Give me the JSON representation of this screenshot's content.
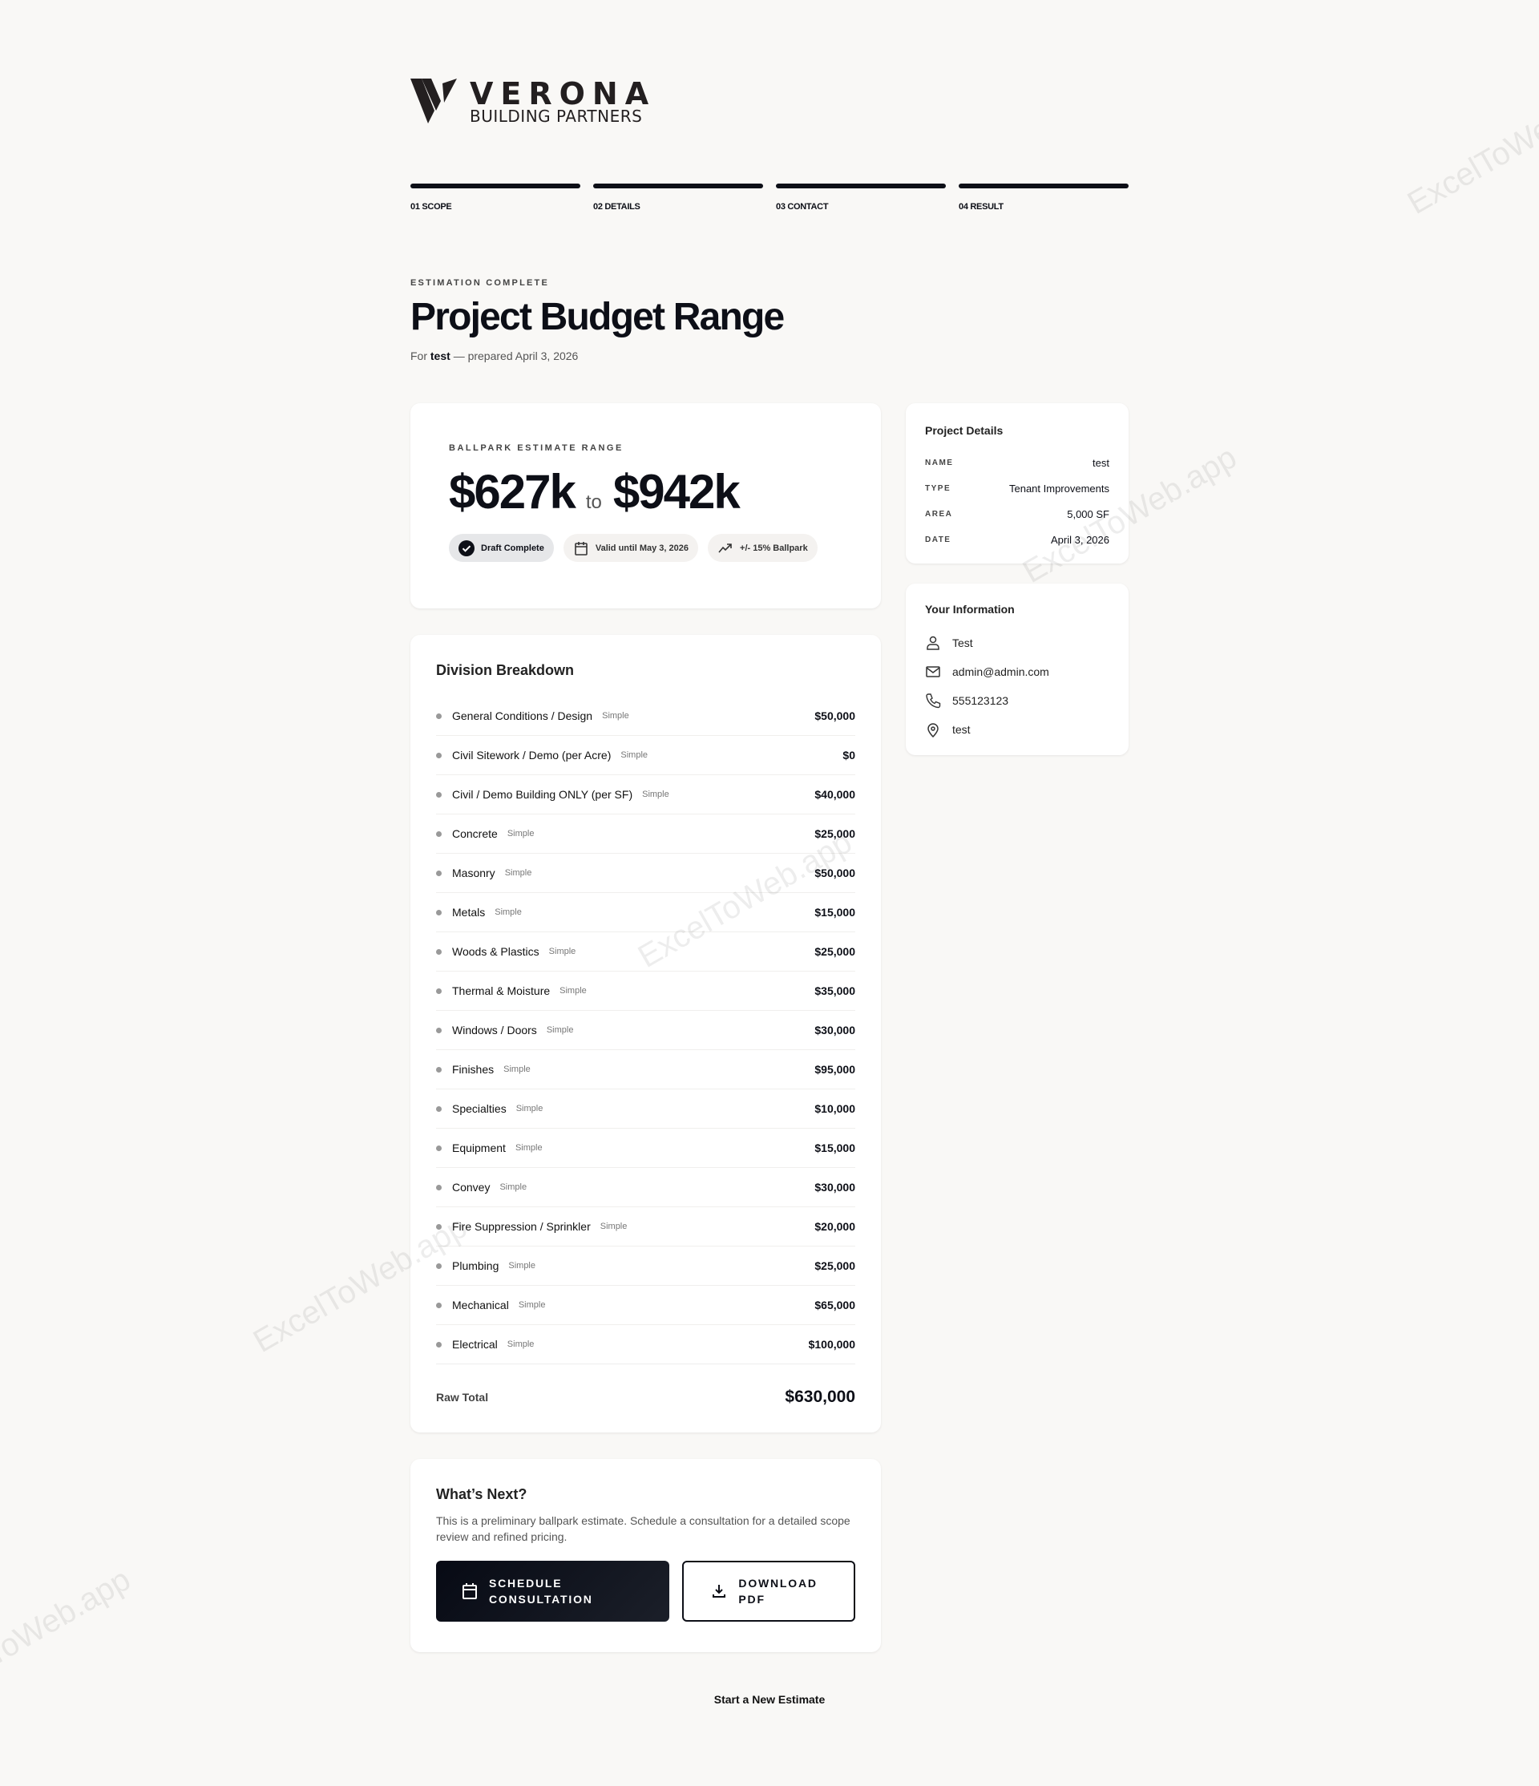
{
  "brand": {
    "name": "VERONA",
    "tagline": "BUILDING PARTNERS"
  },
  "steps": [
    {
      "label": "01 SCOPE",
      "progress": 1
    },
    {
      "label": "02 DETAILS",
      "progress": 1
    },
    {
      "label": "03 CONTACT",
      "progress": 1
    },
    {
      "label": "04 RESULT",
      "progress": 1
    }
  ],
  "header": {
    "eyebrow": "ESTIMATION COMPLETE",
    "title": "Project Budget Range",
    "sub_prefix": "For",
    "sub_name": "test",
    "sub_suffix": "— prepared April 3, 2026"
  },
  "estimate": {
    "label": "BALLPARK ESTIMATE RANGE",
    "low": "$627k",
    "to": "to",
    "high": "$942k",
    "pills": [
      {
        "icon": "check-circle-icon",
        "label": "Draft Complete"
      },
      {
        "icon": "calendar-icon",
        "label": "Valid until May 3, 2026"
      },
      {
        "icon": "trending-up-icon",
        "label": "+/- 15% Ballpark"
      }
    ]
  },
  "project_details": {
    "title": "Project Details",
    "rows": [
      {
        "k": "NAME",
        "v": "test"
      },
      {
        "k": "TYPE",
        "v": "Tenant Improvements"
      },
      {
        "k": "AREA",
        "v": "5,000 SF"
      },
      {
        "k": "DATE",
        "v": "April 3, 2026"
      }
    ]
  },
  "your_info": {
    "title": "Your Information",
    "items": [
      {
        "icon": "user-icon",
        "v": "Test"
      },
      {
        "icon": "mail-icon",
        "v": "admin@admin.com"
      },
      {
        "icon": "phone-icon",
        "v": "555123123"
      },
      {
        "icon": "map-pin-icon",
        "v": "test"
      }
    ]
  },
  "breakdown": {
    "title": "Division Breakdown",
    "rows": [
      {
        "name": "General Conditions / Design",
        "tag": "Simple",
        "value": "$50,000"
      },
      {
        "name": "Civil Sitework / Demo (per Acre)",
        "tag": "Simple",
        "value": "$0"
      },
      {
        "name": "Civil / Demo Building ONLY (per SF)",
        "tag": "Simple",
        "value": "$40,000"
      },
      {
        "name": "Concrete",
        "tag": "Simple",
        "value": "$25,000"
      },
      {
        "name": "Masonry",
        "tag": "Simple",
        "value": "$50,000"
      },
      {
        "name": "Metals",
        "tag": "Simple",
        "value": "$15,000"
      },
      {
        "name": "Woods & Plastics",
        "tag": "Simple",
        "value": "$25,000"
      },
      {
        "name": "Thermal & Moisture",
        "tag": "Simple",
        "value": "$35,000"
      },
      {
        "name": "Windows / Doors",
        "tag": "Simple",
        "value": "$30,000"
      },
      {
        "name": "Finishes",
        "tag": "Simple",
        "value": "$95,000"
      },
      {
        "name": "Specialties",
        "tag": "Simple",
        "value": "$10,000"
      },
      {
        "name": "Equipment",
        "tag": "Simple",
        "value": "$15,000"
      },
      {
        "name": "Convey",
        "tag": "Simple",
        "value": "$30,000"
      },
      {
        "name": "Fire Suppression / Sprinkler",
        "tag": "Simple",
        "value": "$20,000"
      },
      {
        "name": "Plumbing",
        "tag": "Simple",
        "value": "$25,000"
      },
      {
        "name": "Mechanical",
        "tag": "Simple",
        "value": "$65,000"
      },
      {
        "name": "Electrical",
        "tag": "Simple",
        "value": "$100,000"
      }
    ],
    "total_label": "Raw Total",
    "total_value": "$630,000"
  },
  "next": {
    "title": "What’s Next?",
    "text": "This is a preliminary ballpark estimate. Schedule a consultation for a detailed scope review and refined pricing.",
    "primary": "SCHEDULE CONSULTATION",
    "secondary": "DOWNLOAD PDF"
  },
  "footer": {
    "new_estimate": "Start a New Estimate"
  },
  "watermark": "ExcelToWeb.app"
}
